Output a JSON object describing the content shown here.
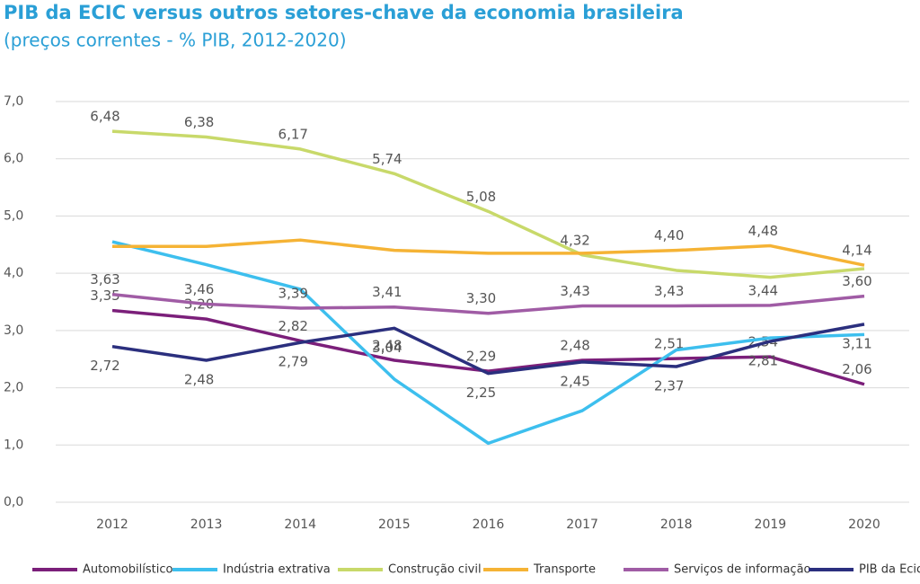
{
  "chart_data": {
    "type": "line",
    "title": "PIB da ECIC versus outros setores-chave da economia brasileira",
    "subtitle": "(preços correntes - % PIB, 2012-2020)",
    "categories": [
      "2012",
      "2013",
      "2014",
      "2015",
      "2016",
      "2017",
      "2018",
      "2019",
      "2020"
    ],
    "ylim": [
      0,
      7
    ],
    "yticks": [
      {
        "value": 0,
        "label": "0,0"
      },
      {
        "value": 1,
        "label": "1,0"
      },
      {
        "value": 2,
        "label": "2,0"
      },
      {
        "value": 3,
        "label": "3,0"
      },
      {
        "value": 4,
        "label": "4,0"
      },
      {
        "value": 5,
        "label": "5,0"
      },
      {
        "value": 6,
        "label": "6,0"
      },
      {
        "value": 7,
        "label": "7,0"
      }
    ],
    "grid": true,
    "legend": "bottom",
    "series": [
      {
        "name": "Automobilístico",
        "color": "#7b1f7a",
        "values": [
          3.35,
          3.2,
          2.82,
          2.48,
          2.29,
          2.48,
          2.51,
          2.54,
          2.06
        ],
        "value_labels": [
          "3,35",
          "3,20",
          "2,82",
          "2,48",
          "2,29",
          "2,48",
          "2,51",
          "2,54",
          "2,06"
        ]
      },
      {
        "name": "Indústria extrativa",
        "color": "#3dbfee",
        "values": [
          4.55,
          4.15,
          3.72,
          2.15,
          1.03,
          1.6,
          2.66,
          2.87,
          2.93
        ]
      },
      {
        "name": "Construção civil",
        "color": "#c8d96a",
        "values": [
          6.48,
          6.38,
          6.17,
          5.74,
          5.08,
          4.32,
          4.05,
          3.93,
          4.08
        ],
        "value_labels": [
          "6,48",
          "6,38",
          "6,17",
          "5,74",
          "5,08",
          "4,32",
          null,
          null,
          null
        ]
      },
      {
        "name": "Transporte",
        "color": "#f5b335",
        "values": [
          4.47,
          4.47,
          4.58,
          4.4,
          4.35,
          4.35,
          4.4,
          4.48,
          4.14
        ],
        "value_labels": [
          null,
          null,
          null,
          null,
          null,
          null,
          "4,40",
          "4,48",
          "4,14"
        ]
      },
      {
        "name": "Serviços de informação",
        "color": "#a05ca5",
        "values": [
          3.63,
          3.46,
          3.39,
          3.41,
          3.3,
          3.43,
          3.43,
          3.44,
          3.6
        ],
        "value_labels": [
          "3,63",
          "3,46",
          "3,39",
          "3,41",
          "3,30",
          "3,43",
          "3,43",
          "3,44",
          "3,60"
        ]
      },
      {
        "name": "PIB da Ecic",
        "color": "#2b2f7e",
        "values": [
          2.72,
          2.48,
          2.79,
          3.04,
          2.25,
          2.45,
          2.37,
          2.81,
          3.11
        ],
        "value_labels": [
          "2,72",
          "2,48",
          "2,79",
          "3,04",
          "2,25",
          "2,45",
          "2,37",
          "2,81",
          "3,11"
        ]
      }
    ]
  }
}
